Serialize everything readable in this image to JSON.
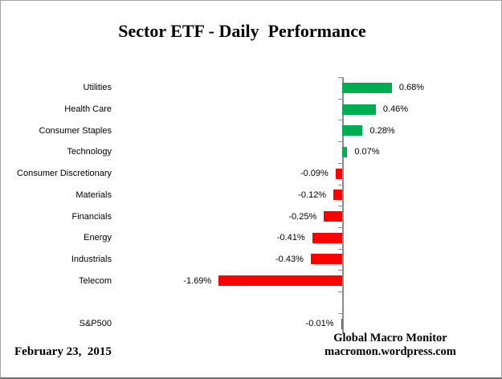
{
  "date_label": "February 23,  2015",
  "attribution": {
    "line1": "Global Macro Monitor",
    "line2": "macromon.wordpress.com"
  },
  "colors": {
    "positive_bar": "#00AC50",
    "negative_bar": "#FF0000",
    "axis_line": "#8C8C8C",
    "border_light": "#A6A6A6",
    "border_dark": "#6E6E6E",
    "background": "#FFFFFF",
    "text": "#000000"
  },
  "chart_data": {
    "type": "bar",
    "orientation": "horizontal",
    "title": "Sector ETF - Daily  Performance",
    "categories": [
      "Utilities",
      "Health Care",
      "Consumer Staples",
      "Technology",
      "Consumer Discretionary",
      "Materials",
      "Financials",
      "Energy",
      "Industrials",
      "Telecom",
      "S&P500"
    ],
    "values": [
      0.68,
      0.46,
      0.28,
      0.07,
      -0.09,
      -0.12,
      -0.25,
      -0.41,
      -0.43,
      -1.69,
      -0.01
    ],
    "value_labels": [
      "0.68%",
      "0.46%",
      "0.28%",
      "0.07%",
      "-0.09%",
      "-0.12%",
      "-0.25%",
      "-0.41%",
      "-0.43%",
      "-1.69%",
      "-0.01%"
    ],
    "unit": "%",
    "separator_after_index": 9,
    "axes": {
      "value_axis_visible": false,
      "category_axis_line": true,
      "tick_marks": "category-boundaries-outside"
    },
    "grid": "off",
    "legend": "none"
  }
}
